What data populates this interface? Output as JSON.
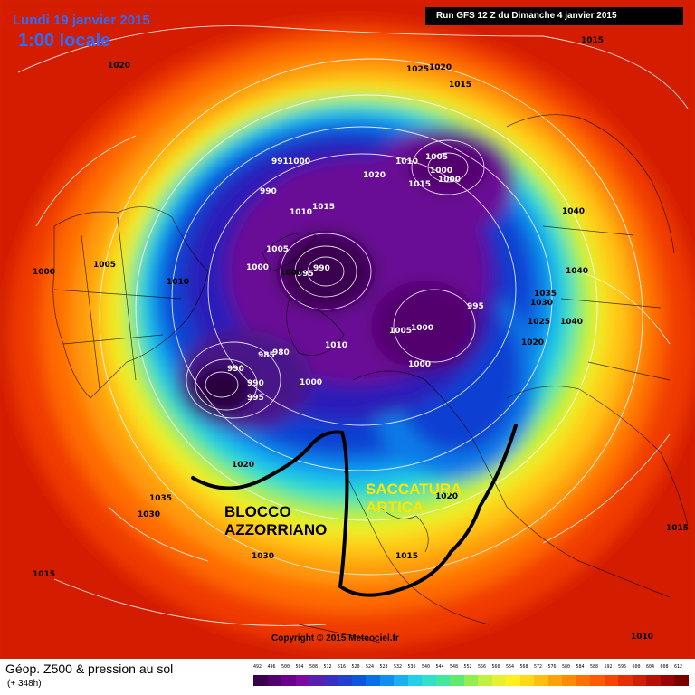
{
  "header": {
    "date": "Lundi 19 janvier 2015",
    "local_time": "1:00 locale",
    "run": "Run GFS 12 Z du Dimanche 4 janvier 2015"
  },
  "annotations": {
    "blocco": [
      "BLOCCO",
      "AZZORRIANO"
    ],
    "saccatura": [
      "SACCATURA",
      "ARTICA"
    ]
  },
  "copyright": "Copyright © 2015 Meteociel.fr",
  "footer": {
    "title": "Géop. Z500 & pression au sol",
    "forecast": "(+ 348h)"
  },
  "isobar_labels": [
    "1020",
    "1015",
    "1025",
    "1020",
    "1015",
    "991",
    "1000",
    "990",
    "1010",
    "1015",
    "1005",
    "1010",
    "1000",
    "1000",
    "1020",
    "1015",
    "1040",
    "1005",
    "1000",
    "990",
    "995",
    "1010",
    "1000",
    "1040",
    "1035",
    "1030",
    "995",
    "1025",
    "1040",
    "1005",
    "1000",
    "1020",
    "985",
    "980",
    "990",
    "990",
    "995",
    "1010",
    "1000",
    "1000",
    "1020",
    "1035",
    "1030",
    "1020",
    "1015",
    "1030",
    "1015",
    "1015",
    "1010",
    "1000",
    "1005"
  ],
  "colors": {
    "background": "#ffffff",
    "title_blue": "#2f6bff",
    "run_bar": "#000000",
    "saccatura_text": "#ffe600"
  },
  "scale": {
    "ticks": [
      "492",
      "496",
      "500",
      "504",
      "508",
      "512",
      "516",
      "520",
      "524",
      "528",
      "532",
      "536",
      "540",
      "544",
      "548",
      "552",
      "556",
      "560",
      "564",
      "568",
      "572",
      "576",
      "580",
      "584",
      "588",
      "592",
      "596",
      "600",
      "604",
      "608",
      "612"
    ],
    "colors": [
      "#3a004f",
      "#52006e",
      "#6a008c",
      "#7d0aa0",
      "#5b1fb0",
      "#3a2ec2",
      "#2040d0",
      "#0c55dc",
      "#0a6fe6",
      "#1090ee",
      "#18b0f0",
      "#22cfe8",
      "#30e0c8",
      "#40e8a0",
      "#60e870",
      "#90ee50",
      "#c0f040",
      "#e8f030",
      "#fff020",
      "#ffd818",
      "#ffbe10",
      "#ffa20a",
      "#ff8a06",
      "#ff7004",
      "#ff5a04",
      "#f54404",
      "#e63004",
      "#d02004",
      "#b81004",
      "#9c0404",
      "#7a0000"
    ]
  }
}
